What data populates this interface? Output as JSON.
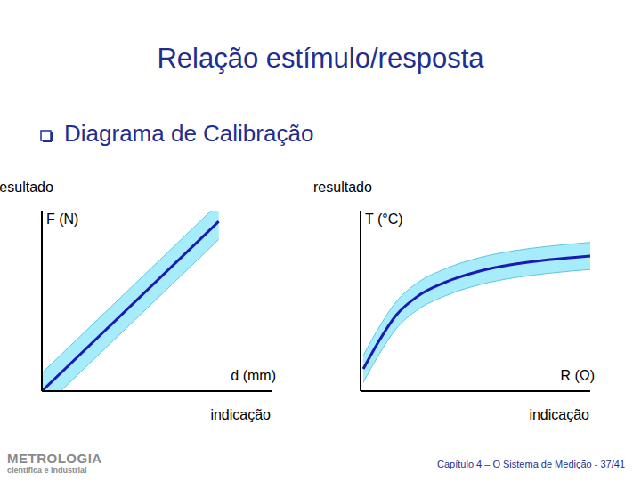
{
  "slide": {
    "title": "Relação estímulo/resposta",
    "bullet": "Diagrama de Calibração",
    "footer": "Capítulo 4 – O Sistema de Medição - 37/41",
    "logo": [
      "METROLOGIA",
      "científica e industrial"
    ]
  },
  "chart_data": [
    {
      "type": "line",
      "y_title": "resultado",
      "y_label": "F (N)",
      "x_label": "d (mm)",
      "x_title": "indicação",
      "xlim": [
        0,
        100
      ],
      "ylim": [
        0,
        100
      ],
      "tick_labels": false,
      "grid": false,
      "x": [
        0,
        77
      ],
      "values": [
        0,
        94
      ],
      "lower": [
        -10,
        84
      ],
      "upper": [
        10,
        104
      ],
      "color": "#1a1ab4"
    },
    {
      "type": "line",
      "y_title": "resultado",
      "y_label": "T (°C)",
      "x_label": "R (Ω)",
      "x_title": "indicação",
      "xlim": [
        0,
        100
      ],
      "ylim": [
        0,
        100
      ],
      "tick_labels": false,
      "grid": false,
      "x": [
        1.2,
        7.7,
        15.4,
        25,
        36.5,
        51.9,
        67.3,
        82.7,
        100
      ],
      "values": [
        12.3,
        27.1,
        41.9,
        52.7,
        60.1,
        66.5,
        70.4,
        72.9,
        74.9
      ],
      "lower": [
        4.8,
        19.6,
        34.4,
        45.2,
        52.6,
        59,
        62.9,
        65.4,
        67.4
      ],
      "upper": [
        19.8,
        34.6,
        49.4,
        60.2,
        67.6,
        74,
        77.9,
        80.4,
        82.4
      ],
      "color": "#1a1ab4"
    }
  ]
}
